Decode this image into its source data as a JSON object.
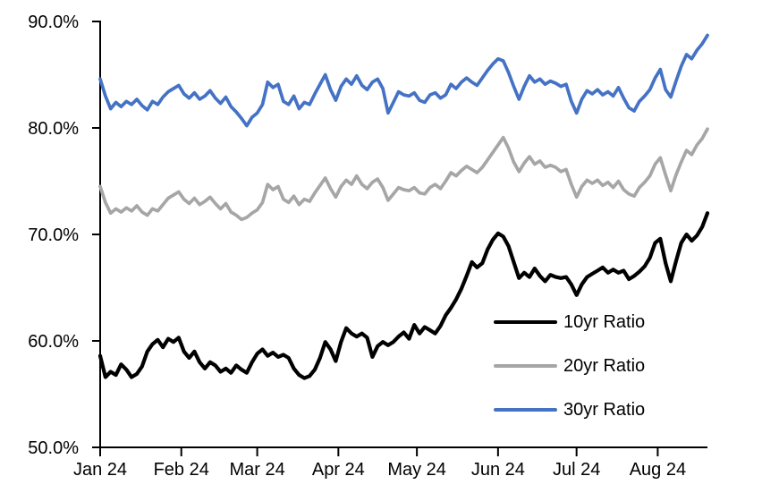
{
  "chart_data": {
    "type": "line",
    "title": "",
    "grid": false,
    "legend_position": "inside-lower-right",
    "x_axis": {
      "unit": "days since 2024-01-01",
      "range": [
        0,
        232
      ],
      "tick_labels": [
        "Jan 24",
        "Feb 24",
        "Mar 24",
        "Apr 24",
        "May 24",
        "Jun 24",
        "Jul 24",
        "Aug 24"
      ],
      "tick_day_offsets": [
        0,
        31,
        60,
        91,
        121,
        152,
        182,
        213
      ]
    },
    "y_axis": {
      "unit": "percent",
      "range": [
        50,
        90
      ],
      "tick_labels": [
        "50.0%",
        "60.0%",
        "70.0%",
        "80.0%",
        "90.0%"
      ],
      "tick_values": [
        50,
        60,
        70,
        80,
        90
      ]
    },
    "x_step_days": 2,
    "series": [
      {
        "name": "10yr Ratio",
        "color": "#000000",
        "values": [
          58.6,
          56.6,
          57.1,
          56.8,
          57.8,
          57.3,
          56.6,
          56.9,
          57.6,
          59.0,
          59.7,
          60.1,
          59.4,
          60.2,
          59.9,
          60.3,
          59.0,
          58.4,
          59.0,
          58.0,
          57.4,
          58.0,
          57.7,
          57.1,
          57.4,
          57.0,
          57.7,
          57.3,
          57.0,
          58.0,
          58.8,
          59.2,
          58.6,
          58.9,
          58.5,
          58.7,
          58.4,
          57.4,
          56.8,
          56.5,
          56.7,
          57.3,
          58.4,
          59.9,
          59.2,
          58.1,
          59.9,
          61.2,
          60.7,
          60.4,
          60.7,
          60.3,
          58.5,
          59.5,
          59.9,
          59.6,
          59.9,
          60.4,
          60.8,
          60.2,
          61.5,
          60.7,
          61.3,
          61.0,
          60.7,
          61.4,
          62.4,
          63.1,
          63.9,
          64.9,
          66.1,
          67.4,
          66.9,
          67.3,
          68.6,
          69.5,
          70.1,
          69.8,
          68.9,
          67.4,
          65.9,
          66.4,
          66.0,
          66.8,
          66.1,
          65.6,
          66.2,
          66.0,
          65.9,
          66.0,
          65.3,
          64.3,
          65.3,
          66.0,
          66.3,
          66.6,
          66.9,
          66.4,
          66.7,
          66.4,
          66.6,
          65.8,
          66.1,
          66.5,
          67.0,
          67.8,
          69.2,
          69.6,
          67.3,
          65.6,
          67.5,
          69.2,
          70.0,
          69.4,
          69.9,
          70.7,
          72.0
        ]
      },
      {
        "name": "20yr Ratio",
        "color": "#A6A6A6",
        "values": [
          74.5,
          73.0,
          72.0,
          72.4,
          72.1,
          72.5,
          72.2,
          72.7,
          72.1,
          71.8,
          72.4,
          72.2,
          72.8,
          73.4,
          73.7,
          74.0,
          73.3,
          72.9,
          73.4,
          72.8,
          73.1,
          73.5,
          72.9,
          72.4,
          72.9,
          72.1,
          71.8,
          71.4,
          71.6,
          72.0,
          72.3,
          73.0,
          74.7,
          74.2,
          74.5,
          73.3,
          73.0,
          73.6,
          72.8,
          73.3,
          73.1,
          73.9,
          74.6,
          75.3,
          74.3,
          73.5,
          74.5,
          75.1,
          74.7,
          75.5,
          74.7,
          74.3,
          74.9,
          75.2,
          74.4,
          73.2,
          73.8,
          74.4,
          74.2,
          74.1,
          74.4,
          73.9,
          73.8,
          74.4,
          74.7,
          74.3,
          75.0,
          75.8,
          75.5,
          76.0,
          76.4,
          76.1,
          75.8,
          76.3,
          77.0,
          77.7,
          78.4,
          79.1,
          78.1,
          76.8,
          75.9,
          76.7,
          77.3,
          76.6,
          76.9,
          76.3,
          76.5,
          76.3,
          75.9,
          76.1,
          74.7,
          73.5,
          74.5,
          75.1,
          74.8,
          75.1,
          74.6,
          74.9,
          74.4,
          75.0,
          74.2,
          73.8,
          73.6,
          74.4,
          74.9,
          75.5,
          76.6,
          77.2,
          75.6,
          74.1,
          75.6,
          76.8,
          77.9,
          77.5,
          78.4,
          79.0,
          79.9
        ]
      },
      {
        "name": "30yr Ratio",
        "color": "#4472C4",
        "values": [
          84.6,
          83.0,
          81.8,
          82.4,
          82.0,
          82.5,
          82.2,
          82.7,
          82.1,
          81.7,
          82.5,
          82.2,
          82.9,
          83.4,
          83.7,
          84.0,
          83.2,
          82.8,
          83.3,
          82.7,
          83.0,
          83.5,
          82.8,
          82.3,
          82.9,
          82.0,
          81.5,
          80.9,
          80.2,
          81.0,
          81.4,
          82.2,
          84.3,
          83.8,
          84.1,
          82.5,
          82.2,
          83.0,
          81.8,
          82.4,
          82.2,
          83.2,
          84.1,
          85.0,
          83.6,
          82.6,
          83.9,
          84.6,
          84.1,
          84.9,
          84.0,
          83.6,
          84.3,
          84.6,
          83.7,
          81.4,
          82.4,
          83.4,
          83.1,
          83.0,
          83.3,
          82.6,
          82.4,
          83.1,
          83.3,
          82.8,
          83.1,
          84.1,
          83.7,
          84.3,
          84.7,
          84.3,
          84.0,
          84.7,
          85.4,
          86.0,
          86.5,
          86.3,
          85.2,
          83.9,
          82.7,
          83.9,
          84.9,
          84.3,
          84.6,
          84.1,
          84.4,
          84.2,
          83.9,
          84.1,
          82.5,
          81.4,
          82.7,
          83.5,
          83.2,
          83.6,
          83.1,
          83.4,
          83.0,
          83.8,
          82.8,
          81.9,
          81.6,
          82.5,
          83.0,
          83.6,
          84.7,
          85.5,
          83.6,
          82.9,
          84.4,
          85.8,
          86.9,
          86.5,
          87.3,
          87.9,
          88.7
        ]
      }
    ]
  }
}
